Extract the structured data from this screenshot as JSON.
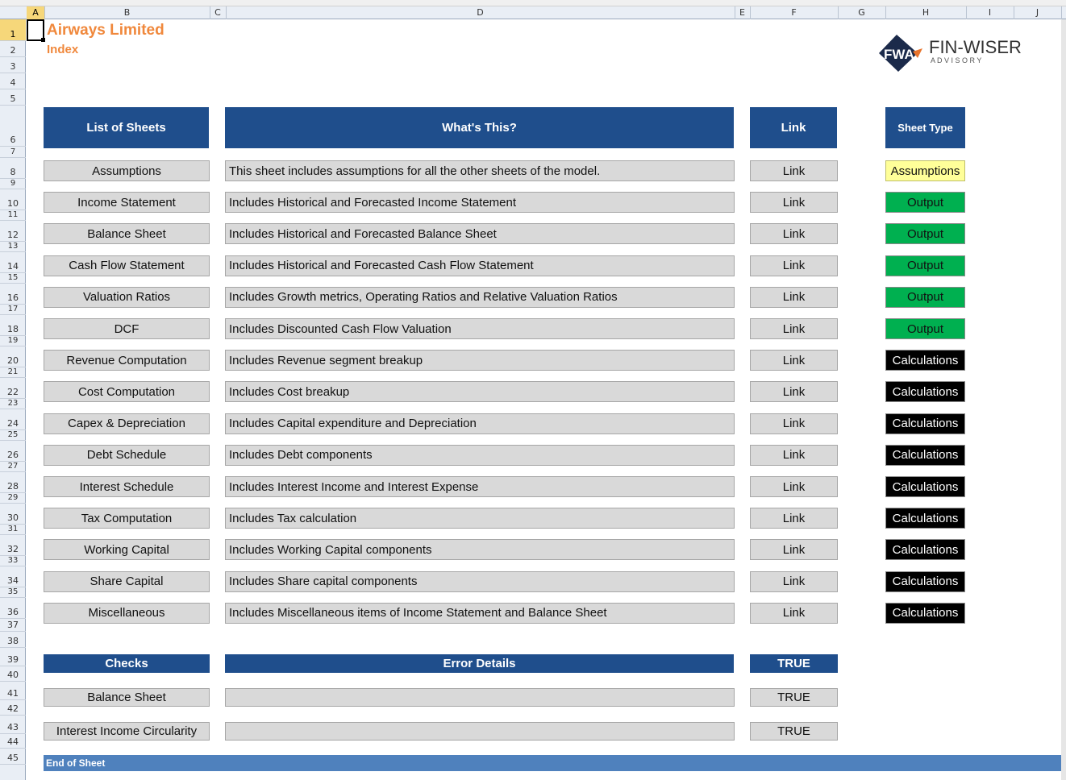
{
  "columns": [
    "A",
    "B",
    "C",
    "D",
    "E",
    "F",
    "G",
    "H",
    "I",
    "J"
  ],
  "active_column": "A",
  "rows": [
    "1",
    "2",
    "3",
    "4",
    "5",
    "6",
    "7",
    "8",
    "9",
    "10",
    "11",
    "12",
    "13",
    "14",
    "15",
    "16",
    "17",
    "18",
    "19",
    "20",
    "21",
    "22",
    "23",
    "24",
    "25",
    "26",
    "27",
    "28",
    "29",
    "30",
    "31",
    "32",
    "33",
    "34",
    "35",
    "36",
    "37",
    "38",
    "39",
    "40",
    "41",
    "42",
    "43",
    "44",
    "45"
  ],
  "active_row": "1",
  "company": "Airways Limited",
  "page_subtitle": "Index",
  "logo": {
    "mark": "FWA",
    "name": "FIN-WISER",
    "tagline": "A D V I S O R Y"
  },
  "headers": {
    "sheets": "List of Sheets",
    "whats_this": "What's This?",
    "link": "Link",
    "sheet_type": "Sheet Type"
  },
  "sheets": [
    {
      "name": "Assumptions",
      "desc": "This sheet includes assumptions for all the other sheets of the model.",
      "link": "Link",
      "type": "Assumptions",
      "type_class": "assumptions"
    },
    {
      "name": "Income Statement",
      "desc": "Includes Historical and Forecasted Income Statement",
      "link": "Link",
      "type": "Output",
      "type_class": "output"
    },
    {
      "name": "Balance Sheet",
      "desc": "Includes Historical and Forecasted Balance Sheet",
      "link": "Link",
      "type": "Output",
      "type_class": "output"
    },
    {
      "name": "Cash Flow Statement",
      "desc": "Includes Historical and Forecasted Cash Flow Statement",
      "link": "Link",
      "type": "Output",
      "type_class": "output"
    },
    {
      "name": "Valuation Ratios",
      "desc": "Includes Growth metrics, Operating Ratios and Relative Valuation Ratios",
      "link": "Link",
      "type": "Output",
      "type_class": "output"
    },
    {
      "name": "DCF",
      "desc": "Includes Discounted Cash Flow Valuation",
      "link": "Link",
      "type": "Output",
      "type_class": "output"
    },
    {
      "name": "Revenue Computation",
      "desc": "Includes Revenue segment breakup",
      "link": "Link",
      "type": "Calculations",
      "type_class": "calculations"
    },
    {
      "name": "Cost Computation",
      "desc": "Includes Cost breakup",
      "link": "Link",
      "type": "Calculations",
      "type_class": "calculations"
    },
    {
      "name": "Capex & Depreciation",
      "desc": "Includes Capital expenditure and Depreciation",
      "link": "Link",
      "type": "Calculations",
      "type_class": "calculations"
    },
    {
      "name": "Debt Schedule",
      "desc": "Includes Debt components",
      "link": "Link",
      "type": "Calculations",
      "type_class": "calculations"
    },
    {
      "name": "Interest Schedule",
      "desc": "Includes Interest Income and Interest Expense",
      "link": "Link",
      "type": "Calculations",
      "type_class": "calculations"
    },
    {
      "name": "Tax Computation",
      "desc": "Includes Tax calculation",
      "link": "Link",
      "type": "Calculations",
      "type_class": "calculations"
    },
    {
      "name": "Working Capital",
      "desc": "Includes Working Capital components",
      "link": "Link",
      "type": "Calculations",
      "type_class": "calculations"
    },
    {
      "name": "Share Capital",
      "desc": "Includes Share capital components",
      "link": "Link",
      "type": "Calculations",
      "type_class": "calculations"
    },
    {
      "name": "Miscellaneous",
      "desc": "Includes Miscellaneous items of Income Statement and Balance Sheet",
      "link": "Link",
      "type": "Calculations",
      "type_class": "calculations"
    }
  ],
  "checks_header": {
    "checks": "Checks",
    "error_details": "Error Details",
    "status": "TRUE"
  },
  "checks": [
    {
      "name": "Balance Sheet",
      "error": "",
      "status": "TRUE"
    },
    {
      "name": "Interest Income Circularity",
      "error": "",
      "status": "TRUE"
    }
  ],
  "footer": "End of Sheet",
  "colors": {
    "header_blue": "#1f4e8c",
    "footer_blue": "#4f81bd",
    "title_orange": "#f0883c",
    "output_green": "#00b050",
    "assumption_yellow": "#ffff99"
  }
}
